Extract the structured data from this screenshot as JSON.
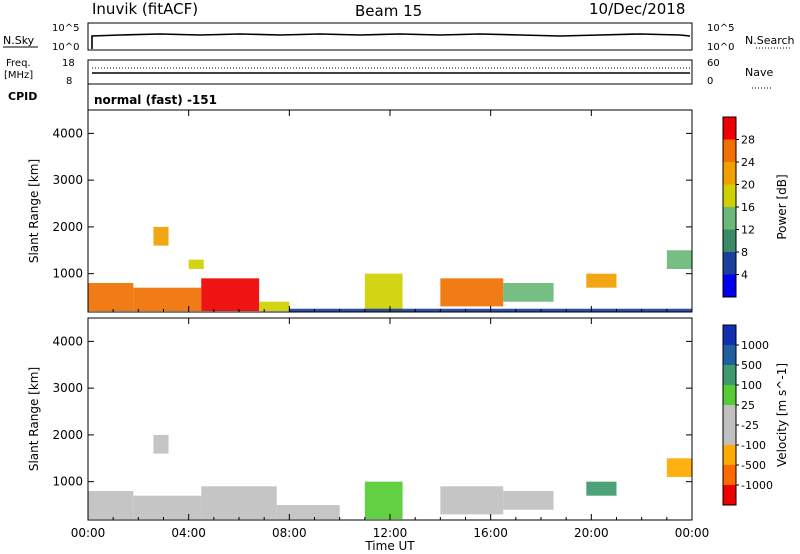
{
  "header": {
    "station": "Inuvik (fitACF)",
    "beam": "Beam 15",
    "date": "10/Dec/2018"
  },
  "top_panels": {
    "nsky_label": "N.Sky",
    "nsearch_label": "N.Search",
    "freq_label_1": "Freq.",
    "freq_label_2": "[MHz]",
    "nave_label": "Nave",
    "cpid_label": "CPID",
    "cpid_value": "normal (fast) -151",
    "nsky_ticks": [
      "10^5",
      "10^0"
    ],
    "nsearch_ticks": [
      "10^5",
      "10^0"
    ],
    "freq_ticks": [
      "18",
      "8"
    ],
    "nave_ticks": [
      "60",
      "0"
    ]
  },
  "colors": {
    "power": [
      "#0000ee",
      "#1a3f9c",
      "#3b8a66",
      "#6ab87a",
      "#cfd000",
      "#f0a000",
      "#f07000",
      "#ee0000"
    ],
    "velocity": [
      "#ee0000",
      "#ff6a00",
      "#ffaa00",
      "#c0c0c0",
      "#c0c0c0",
      "#55cc33",
      "#3c9a6e",
      "#1f5fa0",
      "#1030b0"
    ]
  },
  "chart_data": [
    {
      "type": "heatmap",
      "name": "power",
      "ylabel": "Slant Range [km]",
      "xlabel": "",
      "xlim": [
        0,
        24
      ],
      "ylim": [
        180,
        4500
      ],
      "y_ticks": [
        1000,
        2000,
        3000,
        4000
      ],
      "x_ticks": [
        0,
        4,
        8,
        12,
        16,
        20,
        24
      ],
      "x_tick_labels": [
        "00:00",
        "04:00",
        "08:00",
        "12:00",
        "16:00",
        "20:00",
        "00:00"
      ],
      "colorbar": {
        "label": "Power [dB]",
        "ticks": [
          "28",
          "24",
          "20",
          "16",
          "12",
          "8",
          "4"
        ],
        "range": [
          0,
          30
        ]
      },
      "patches": [
        {
          "t": [
            0.0,
            1.8
          ],
          "r": [
            200,
            800
          ],
          "v": 24
        },
        {
          "t": [
            1.8,
            4.5
          ],
          "r": [
            200,
            700
          ],
          "v": 26
        },
        {
          "t": [
            4.5,
            6.8
          ],
          "r": [
            200,
            900
          ],
          "v": 28
        },
        {
          "t": [
            6.8,
            8.0
          ],
          "r": [
            200,
            400
          ],
          "v": 18
        },
        {
          "t": [
            2.6,
            3.2
          ],
          "r": [
            1600,
            2000
          ],
          "v": 20
        },
        {
          "t": [
            4.0,
            4.6
          ],
          "r": [
            1100,
            1300
          ],
          "v": 18
        },
        {
          "t": [
            11.0,
            12.5
          ],
          "r": [
            200,
            1000
          ],
          "v": 16
        },
        {
          "t": [
            14.0,
            16.5
          ],
          "r": [
            300,
            900
          ],
          "v": 26
        },
        {
          "t": [
            16.5,
            18.5
          ],
          "r": [
            400,
            800
          ],
          "v": 14
        },
        {
          "t": [
            19.8,
            21.0
          ],
          "r": [
            700,
            1000
          ],
          "v": 22
        },
        {
          "t": [
            23.0,
            24.0
          ],
          "r": [
            1100,
            1500
          ],
          "v": 12
        },
        {
          "t": [
            8.0,
            24.0
          ],
          "r": [
            180,
            250
          ],
          "v": 6
        }
      ]
    },
    {
      "type": "heatmap",
      "name": "velocity",
      "ylabel": "Slant Range [km]",
      "xlabel": "Time UT",
      "xlim": [
        0,
        24
      ],
      "ylim": [
        180,
        4500
      ],
      "y_ticks": [
        1000,
        2000,
        3000,
        4000
      ],
      "x_ticks": [
        0,
        4,
        8,
        12,
        16,
        20,
        24
      ],
      "x_tick_labels": [
        "00:00",
        "04:00",
        "08:00",
        "12:00",
        "16:00",
        "20:00",
        "00:00"
      ],
      "colorbar": {
        "label": "Velocity [m s^-1]",
        "ticks": [
          "1000",
          "500",
          "100",
          "25",
          "-25",
          "-100",
          "-500",
          "-1000"
        ],
        "range": [
          -1200,
          1200
        ]
      },
      "patches": [
        {
          "t": [
            0.0,
            1.8
          ],
          "r": [
            200,
            800
          ],
          "v": -300
        },
        {
          "t": [
            1.8,
            4.5
          ],
          "r": [
            200,
            700
          ],
          "v": -300
        },
        {
          "t": [
            4.5,
            7.5
          ],
          "r": [
            200,
            900
          ],
          "v": 60
        },
        {
          "t": [
            7.5,
            10.0
          ],
          "r": [
            200,
            500
          ],
          "v": 0
        },
        {
          "t": [
            2.6,
            3.2
          ],
          "r": [
            1600,
            2000
          ],
          "v": -400
        },
        {
          "t": [
            11.0,
            12.5
          ],
          "r": [
            200,
            1000
          ],
          "v": 150
        },
        {
          "t": [
            14.0,
            16.5
          ],
          "r": [
            300,
            900
          ],
          "v": -400
        },
        {
          "t": [
            16.5,
            18.5
          ],
          "r": [
            400,
            800
          ],
          "v": -300
        },
        {
          "t": [
            19.8,
            21.0
          ],
          "r": [
            700,
            1000
          ],
          "v": 400
        },
        {
          "t": [
            23.0,
            24.0
          ],
          "r": [
            1100,
            1500
          ],
          "v": -500
        }
      ]
    }
  ]
}
